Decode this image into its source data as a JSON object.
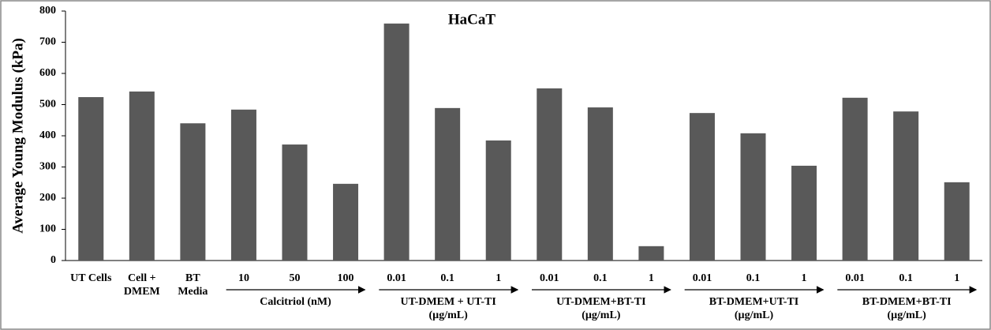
{
  "chart_data": {
    "type": "bar",
    "title": "HaCaT",
    "y_label": "Average Young Modulus (kPa)",
    "categories": [
      [
        "UT Cells"
      ],
      [
        "Cell +",
        "DMEM"
      ],
      [
        "BT",
        "Media"
      ],
      [
        "10"
      ],
      [
        "50"
      ],
      [
        "100"
      ],
      [
        "0.01"
      ],
      [
        "0.1"
      ],
      [
        "1"
      ],
      [
        "0.01"
      ],
      [
        "0.1"
      ],
      [
        "1"
      ],
      [
        "0.01"
      ],
      [
        "0.1"
      ],
      [
        "1"
      ],
      [
        "0.01"
      ],
      [
        "0.1"
      ],
      [
        "1"
      ]
    ],
    "groups": [
      [
        "Calcitriol (nM)"
      ],
      [
        "UT-DMEM + UT-TI",
        "(µg/mL)"
      ],
      [
        "UT-DMEM+BT-TI",
        "(µg/mL)"
      ],
      [
        "BT-DMEM+UT-TI",
        "(µg/mL)"
      ],
      [
        "BT-DMEM+BT-TI",
        "(µg/mL)"
      ]
    ],
    "values": [
      524,
      542,
      440,
      484,
      372,
      246,
      760,
      489,
      385,
      552,
      491,
      46,
      473,
      408,
      304,
      522,
      478,
      251
    ],
    "color": "#595959",
    "ylim": [
      0,
      800
    ],
    "yticks": [
      0,
      100,
      200,
      300,
      400,
      500,
      600,
      700,
      800
    ]
  }
}
